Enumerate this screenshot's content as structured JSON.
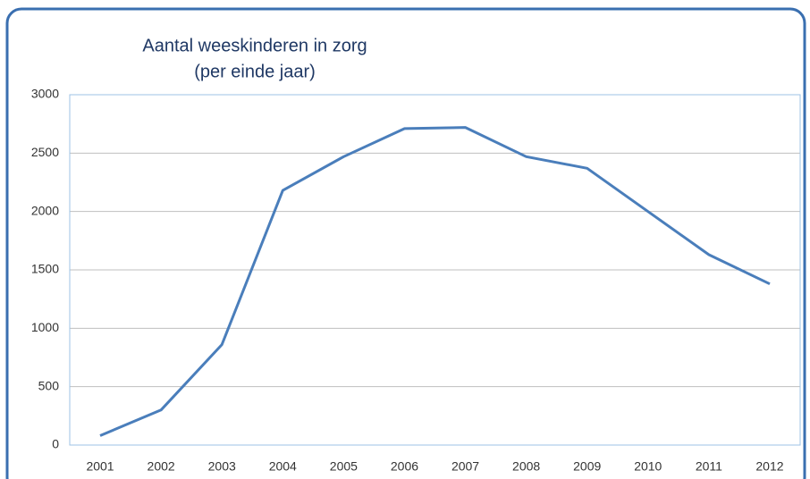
{
  "chart_data": {
    "type": "line",
    "title": "Aantal weeskinderen in zorg",
    "subtitle": "(per einde jaar)",
    "categories": [
      "2001",
      "2002",
      "2003",
      "2004",
      "2005",
      "2006",
      "2007",
      "2008",
      "2009",
      "2010",
      "2011",
      "2012"
    ],
    "series": [
      {
        "name": "Weeskinderen",
        "color": "#4a7ebb",
        "values": [
          80,
          300,
          860,
          2180,
          2470,
          2710,
          2720,
          2470,
          2370,
          2000,
          1630,
          1380
        ]
      }
    ],
    "ylim": [
      0,
      3000
    ],
    "yticks": [
      0,
      500,
      1000,
      1500,
      2000,
      2500,
      3000
    ],
    "grid": true
  }
}
